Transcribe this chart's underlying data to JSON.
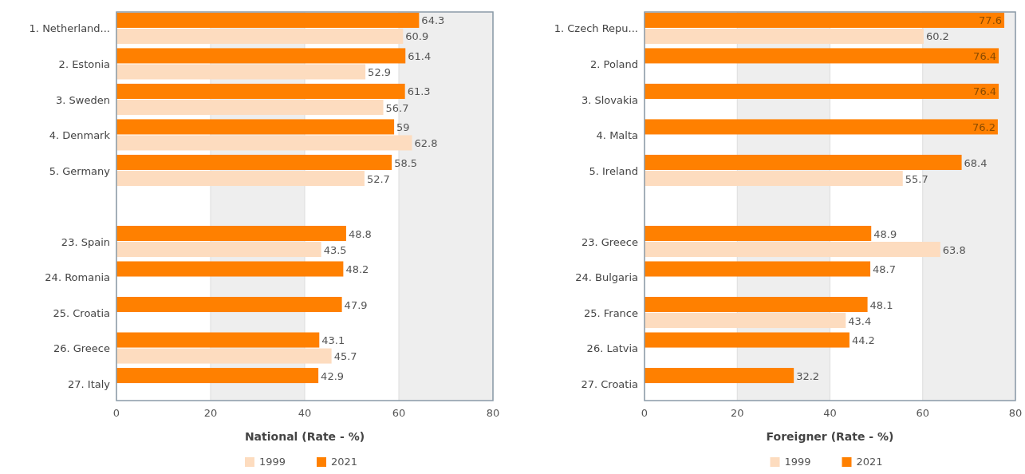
{
  "chart_data": [
    {
      "type": "bar",
      "orientation": "horizontal",
      "xlabel": "National (Rate - %)",
      "categories": [
        "1. Netherland...",
        "2. Estonia",
        "3. Sweden",
        "4. Denmark",
        "5. Germany",
        null,
        "23. Spain",
        "24. Romania",
        "25. Croatia",
        "26. Greece",
        "27. Italy"
      ],
      "series": [
        {
          "name": "2021",
          "color": "#ff8000",
          "values": [
            64.3,
            61.4,
            61.3,
            59,
            58.5,
            null,
            48.8,
            48.2,
            47.9,
            43.1,
            42.9
          ]
        },
        {
          "name": "1999",
          "color": "#fddcbf",
          "values": [
            60.9,
            52.9,
            56.7,
            62.8,
            52.7,
            null,
            43.5,
            null,
            null,
            45.7,
            null
          ]
        }
      ],
      "xlim": [
        0,
        80
      ],
      "xticks": [
        0,
        20,
        40,
        60,
        80
      ],
      "grid": "x",
      "bands": [
        {
          "axis": "x",
          "from": 20,
          "to": 40,
          "color": "#eeeeee"
        },
        {
          "axis": "x",
          "from": 60,
          "to": 80,
          "color": "#eeeeee"
        }
      ],
      "data_labels": true,
      "legend": "bottom"
    },
    {
      "type": "bar",
      "orientation": "horizontal",
      "xlabel": "Foreigner (Rate - %)",
      "categories": [
        "1. Czech Repu...",
        "2. Poland",
        "3. Slovakia",
        "4. Malta",
        "5. Ireland",
        null,
        "23. Greece",
        "24. Bulgaria",
        "25. France",
        "26. Latvia",
        "27. Croatia"
      ],
      "series": [
        {
          "name": "2021",
          "color": "#ff8000",
          "values": [
            77.6,
            76.4,
            76.4,
            76.2,
            68.4,
            null,
            48.9,
            48.7,
            48.1,
            44.2,
            32.2
          ]
        },
        {
          "name": "1999",
          "color": "#fddcbf",
          "values": [
            60.2,
            null,
            null,
            null,
            55.7,
            null,
            63.8,
            null,
            43.4,
            null,
            null
          ]
        }
      ],
      "xlim": [
        0,
        80
      ],
      "xticks": [
        0,
        20,
        40,
        60,
        80
      ],
      "grid": "x",
      "bands": [
        {
          "axis": "x",
          "from": 20,
          "to": 40,
          "color": "#eeeeee"
        },
        {
          "axis": "x",
          "from": 60,
          "to": 80,
          "color": "#eeeeee"
        }
      ],
      "data_labels": true,
      "legend": "bottom"
    }
  ]
}
